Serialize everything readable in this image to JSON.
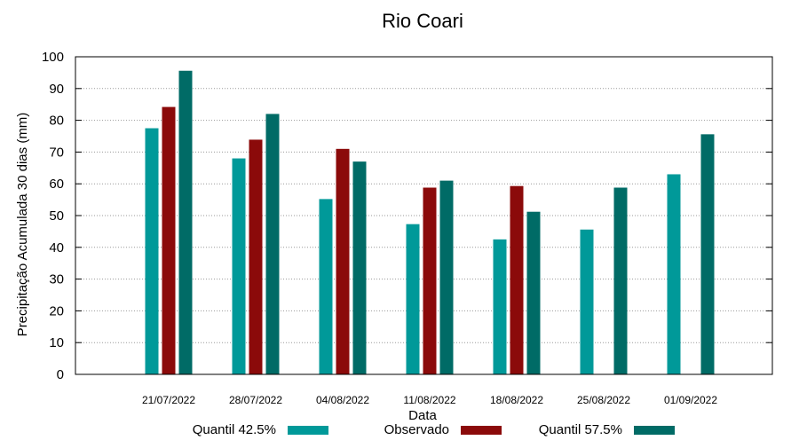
{
  "chart_data": {
    "type": "bar",
    "title": "Rio Coari",
    "xlabel": "Data",
    "ylabel": "Precipitação Acumulada 30 dias (mm)",
    "ylim": [
      0,
      100
    ],
    "yticks": [
      0,
      10,
      20,
      30,
      40,
      50,
      60,
      70,
      80,
      90,
      100
    ],
    "grid": true,
    "legend_position": "bottom",
    "categories": [
      "21/07/2022",
      "28/07/2022",
      "04/08/2022",
      "11/08/2022",
      "18/08/2022",
      "25/08/2022",
      "01/09/2022"
    ],
    "series": [
      {
        "name": "Quantil 42.5%",
        "color": "#009999",
        "values": [
          77.5,
          68,
          55.2,
          47.3,
          42.5,
          45.6,
          63
        ]
      },
      {
        "name": "Observado",
        "color": "#8b0a0a",
        "values": [
          84.2,
          73.9,
          71,
          58.8,
          59.3,
          null,
          null
        ]
      },
      {
        "name": "Quantil 57.5%",
        "color": "#006b66",
        "values": [
          95.6,
          82,
          67,
          61,
          51.2,
          58.8,
          75.6
        ]
      }
    ]
  }
}
